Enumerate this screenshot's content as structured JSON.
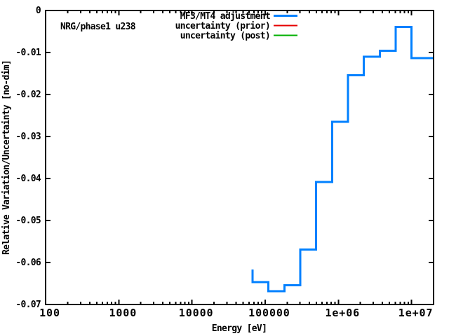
{
  "chart": {
    "annotation": "NRG/phase1 u238",
    "xlabel": "Energy [eV]",
    "ylabel": "Relative Variation/Uncertainty [no-dim]"
  },
  "chart_data": {
    "type": "line",
    "line_style": "steps",
    "title": "",
    "annotation": "NRG/phase1 u238",
    "xlabel": "Energy [eV]",
    "ylabel": "Relative Variation/Uncertainty [no-dim]",
    "x_scale": "log",
    "grid": false,
    "legend_position": "top-right-inside",
    "xlim": [
      100,
      20000000
    ],
    "ylim": [
      -0.07,
      0
    ],
    "x_ticks": [
      {
        "value": 100,
        "label": "100"
      },
      {
        "value": 1000,
        "label": "1000"
      },
      {
        "value": 10000,
        "label": "10000"
      },
      {
        "value": 100000,
        "label": "100000"
      },
      {
        "value": 1000000,
        "label": "1e+06"
      },
      {
        "value": 10000000,
        "label": "1e+07"
      }
    ],
    "y_ticks": [
      {
        "value": 0,
        "label": "0"
      },
      {
        "value": -0.01,
        "label": "-0.01"
      },
      {
        "value": -0.02,
        "label": "-0.02"
      },
      {
        "value": -0.03,
        "label": "-0.03"
      },
      {
        "value": -0.04,
        "label": "-0.04"
      },
      {
        "value": -0.05,
        "label": "-0.05"
      },
      {
        "value": -0.06,
        "label": "-0.06"
      },
      {
        "value": -0.07,
        "label": "-0.07"
      }
    ],
    "series": [
      {
        "name": "MF3/MT4 adjustment",
        "color": "#0080ff",
        "line_width": 3,
        "visible_in_plot": true,
        "lead_in_value": -0.0617,
        "bin_boundaries_eV": [
          67380,
          111100,
          183200,
          302000,
          497900,
          820800,
          1353000,
          2231000,
          3679000,
          6065000,
          10000000,
          19640000
        ],
        "bin_values": [
          -0.0647,
          -0.0668,
          -0.0654,
          -0.0569,
          -0.0408,
          -0.0265,
          -0.0154,
          -0.011,
          -0.0096,
          -0.0039,
          -0.0113
        ]
      },
      {
        "name": "uncertainty (prior)",
        "color": "#e60000",
        "line_width": 2,
        "visible_in_plot": false
      },
      {
        "name": "uncertainty (post)",
        "color": "#00b000",
        "line_width": 2,
        "visible_in_plot": false
      }
    ]
  }
}
